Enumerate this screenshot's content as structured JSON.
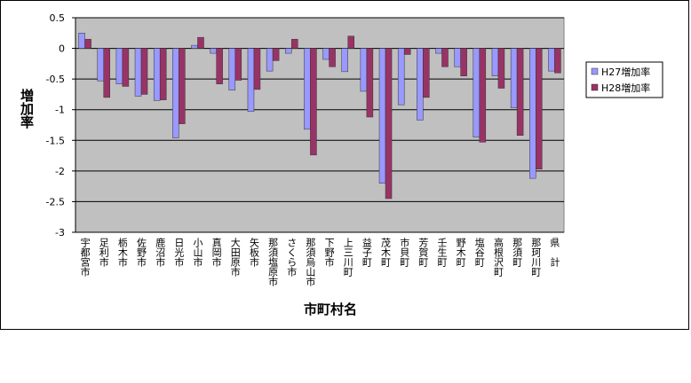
{
  "chart_data": {
    "type": "bar",
    "categories": [
      "宇都宮市",
      "足利市",
      "栃木市",
      "佐野市",
      "鹿沼市",
      "日光市",
      "小山市",
      "真岡市",
      "大田原市",
      "矢板市",
      "那須塩原市",
      "さくら市",
      "那須烏山市",
      "下野市",
      "上三川町",
      "益子町",
      "茂木町",
      "市貝町",
      "芳賀町",
      "壬生町",
      "野木町",
      "塩谷町",
      "高根沢町",
      "那須町",
      "那珂川町",
      "県　計"
    ],
    "series": [
      {
        "name": "H27増加率",
        "color": "#9999ff",
        "values": [
          0.25,
          -0.53,
          -0.58,
          -0.78,
          -0.85,
          -1.46,
          0.05,
          -0.08,
          -0.68,
          -1.03,
          -0.37,
          -0.08,
          -1.32,
          -0.18,
          -0.38,
          -0.7,
          -2.2,
          -0.92,
          -1.17,
          -0.08,
          -0.3,
          -1.45,
          -0.45,
          -0.97,
          -2.12,
          -0.37
        ]
      },
      {
        "name": "H28増加率",
        "color": "#993366",
        "values": [
          0.15,
          -0.8,
          -0.62,
          -0.75,
          -0.84,
          -1.23,
          0.18,
          -0.58,
          -0.52,
          -0.67,
          -0.2,
          0.15,
          -1.74,
          -0.3,
          0.2,
          -1.12,
          -2.45,
          -0.1,
          -0.8,
          -0.3,
          -0.45,
          -1.53,
          -0.65,
          -1.42,
          -1.97,
          -0.4
        ]
      }
    ],
    "y_label": "増加率",
    "x_label": "市町村名",
    "ylim": [
      -3,
      0.5
    ],
    "yticks": [
      0.5,
      0,
      -0.5,
      -1,
      -1.5,
      -2,
      -2.5,
      -3
    ],
    "grid": true
  }
}
